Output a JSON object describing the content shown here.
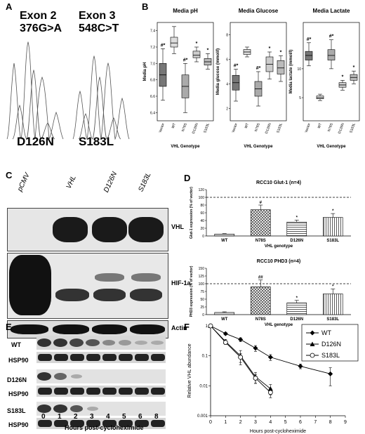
{
  "panels": {
    "A": {
      "label": "A",
      "exon2": {
        "title": "Exon 2",
        "mutation": "376G>A",
        "protein": "D126N"
      },
      "exon3": {
        "title": "Exon 3",
        "mutation": "548C>T",
        "protein": "S183L"
      }
    },
    "B": {
      "label": "B"
    },
    "C": {
      "label": "C",
      "lanes": [
        "pCMV",
        "VHL",
        "D126N",
        "S183L"
      ],
      "blots": [
        "VHL",
        "HIF-1a",
        "Actin"
      ]
    },
    "D": {
      "label": "D"
    },
    "E": {
      "label": "E",
      "rows": [
        "WT",
        "HSP90",
        "D126N",
        "HSP90",
        "S183L",
        "HSP90"
      ],
      "ticks": [
        "0",
        "1",
        "2",
        "3",
        "4",
        "5",
        "6",
        "8"
      ],
      "xlabel": "Hours post-cycloheximide"
    },
    "F": {
      "label": "F"
    }
  },
  "chart_data": [
    {
      "type": "box",
      "panel": "B",
      "title": "Media pH",
      "ylabel": "Media pH",
      "xlabel": "VHL Genotype",
      "categories": [
        "Vector",
        "WT",
        "N78S",
        "D126N",
        "S183L"
      ],
      "yticks": [
        "6.4",
        "6.6",
        "6.8",
        "7.0",
        "7.2",
        "7.4"
      ],
      "ylim": [
        6.3,
        7.5
      ],
      "boxes": [
        {
          "min": 6.55,
          "q1": 6.72,
          "median": 6.86,
          "q3": 7.0,
          "max": 7.18
        },
        {
          "min": 7.12,
          "q1": 7.2,
          "median": 7.25,
          "q3": 7.32,
          "max": 7.45
        },
        {
          "min": 6.4,
          "q1": 6.58,
          "median": 6.72,
          "q3": 6.86,
          "max": 7.0
        },
        {
          "min": 7.02,
          "q1": 7.07,
          "median": 7.1,
          "q3": 7.15,
          "max": 7.2
        },
        {
          "min": 6.93,
          "q1": 6.98,
          "median": 7.02,
          "q3": 7.06,
          "max": 7.12
        }
      ],
      "annotations": [
        "#*",
        "",
        "#*",
        "*",
        "*"
      ]
    },
    {
      "type": "box",
      "panel": "B",
      "title": "Media Glucose",
      "ylabel": "Media glucose (mmol/l)",
      "xlabel": "VHL Genotype",
      "categories": [
        "Vector",
        "WT",
        "N78S",
        "D126N",
        "S183L"
      ],
      "yticks": [
        "2",
        "4",
        "6",
        "8"
      ],
      "ylim": [
        1,
        9
      ],
      "boxes": [
        {
          "min": 2.6,
          "q1": 3.5,
          "median": 4.1,
          "q3": 4.7,
          "max": 5.2
        },
        {
          "min": 6.2,
          "q1": 6.4,
          "median": 6.6,
          "q3": 6.8,
          "max": 7.0
        },
        {
          "min": 2.2,
          "q1": 3.0,
          "median": 3.6,
          "q3": 4.2,
          "max": 5.0
        },
        {
          "min": 4.4,
          "q1": 5.0,
          "median": 5.6,
          "q3": 6.2,
          "max": 6.6
        },
        {
          "min": 4.2,
          "q1": 4.8,
          "median": 5.3,
          "q3": 5.9,
          "max": 6.3
        }
      ],
      "annotations": [
        "#*",
        "",
        "#*",
        "*",
        "*"
      ]
    },
    {
      "type": "box",
      "panel": "B",
      "title": "Media Lactate",
      "ylabel": "Media lactate (mmol/l)",
      "xlabel": "VHL Genotype",
      "categories": [
        "Vector",
        "WT",
        "N78S",
        "D126N",
        "S183L"
      ],
      "yticks": [
        "5",
        "10"
      ],
      "ylim": [
        1,
        18
      ],
      "boxes": [
        {
          "min": 10.5,
          "q1": 11.5,
          "median": 12.3,
          "q3": 13.0,
          "max": 14.5
        },
        {
          "min": 4.5,
          "q1": 4.8,
          "median": 5.0,
          "q3": 5.3,
          "max": 5.6
        },
        {
          "min": 10.0,
          "q1": 11.5,
          "median": 12.3,
          "q3": 13.3,
          "max": 15.0
        },
        {
          "min": 6.3,
          "q1": 6.8,
          "median": 7.2,
          "q3": 7.6,
          "max": 8.0
        },
        {
          "min": 7.4,
          "q1": 8.0,
          "median": 8.5,
          "q3": 9.0,
          "max": 9.6
        }
      ],
      "annotations": [
        "#*",
        "",
        "#*",
        "*",
        "*"
      ]
    },
    {
      "type": "bar",
      "panel": "D",
      "title": "RCC10 Glut-1 (n=4)",
      "ylabel": "Glut-1 expression (% of vector)",
      "xlabel": "VHL genotype",
      "categories": [
        "WT",
        "N78S",
        "D126N",
        "S183L"
      ],
      "values": [
        5,
        68,
        36,
        48
      ],
      "errors": [
        1,
        12,
        5,
        10
      ],
      "annotations": [
        "",
        "#",
        "*",
        "*"
      ],
      "yticks": [
        "0",
        "20",
        "40",
        "60",
        "80",
        "100",
        "120"
      ],
      "ylim": [
        0,
        120
      ],
      "reference_line": 100
    },
    {
      "type": "bar",
      "panel": "D",
      "title": "RCC10 PHD3 (n=4)",
      "ylabel": "PHD3 expression (% of vector)",
      "xlabel": "VHL genotype",
      "categories": [
        "WT",
        "N78S",
        "D126N",
        "S183L"
      ],
      "values": [
        7,
        90,
        38,
        67
      ],
      "errors": [
        2,
        22,
        8,
        16
      ],
      "annotations": [
        "",
        "##",
        "*",
        "*"
      ],
      "yticks": [
        "0",
        "25",
        "50",
        "75",
        "100",
        "125",
        "150"
      ],
      "ylim": [
        0,
        150
      ],
      "reference_line": 100
    },
    {
      "type": "line",
      "panel": "F",
      "ylabel": "Relative VHL abundance",
      "xlabel": "Hours post-cycloheximide",
      "yscale": "log",
      "ylim": [
        0.001,
        1
      ],
      "xlim": [
        0,
        9
      ],
      "yticks": [
        "0.001",
        "0.01",
        "0.1",
        "1"
      ],
      "xticks": [
        "0",
        "1",
        "2",
        "3",
        "4",
        "5",
        "6",
        "7",
        "8",
        "9"
      ],
      "legend_position": "top-right",
      "series": [
        {
          "name": "WT",
          "marker": "diamond",
          "x": [
            0,
            1,
            2,
            3,
            4,
            6,
            8
          ],
          "y": [
            1,
            0.55,
            0.35,
            0.18,
            0.09,
            0.045,
            0.025
          ],
          "err": [
            0,
            0.05,
            0.05,
            0.04,
            0.02,
            0.008,
            0.015
          ]
        },
        {
          "name": "D126N",
          "marker": "triangle",
          "x": [
            0,
            1,
            2,
            3,
            4
          ],
          "y": [
            1,
            0.3,
            0.1,
            0.02,
            0.008
          ],
          "err": [
            0,
            0.05,
            0.05,
            0.008,
            0.003
          ]
        },
        {
          "name": "S183L",
          "marker": "circle",
          "x": [
            0,
            1,
            2,
            3,
            4
          ],
          "y": [
            1,
            0.28,
            0.09,
            0.018,
            0.006
          ],
          "err": [
            0,
            0.04,
            0.03,
            0.006,
            0.002
          ]
        }
      ]
    }
  ]
}
